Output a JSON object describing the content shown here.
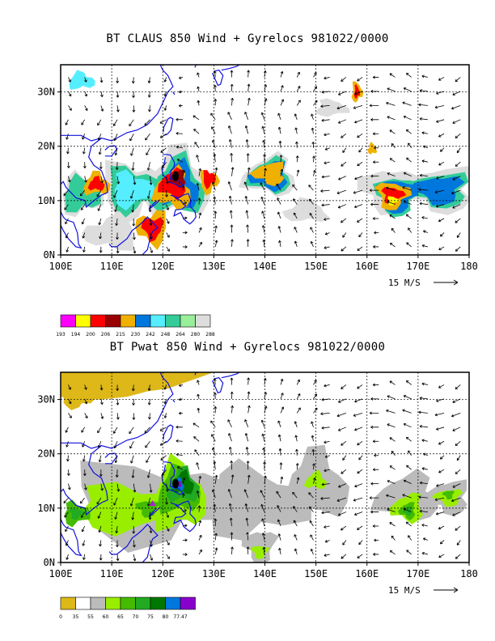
{
  "panels": [
    {
      "title": "BT CLAUS 850 Wind + Gyrelocs 981022/0000",
      "field": "CLAUS brightness temperature",
      "legend": {
        "colors": [
          "#ff00ff",
          "#ffff00",
          "#ff0000",
          "#990000",
          "#f0b000",
          "#0077dd",
          "#55eeff",
          "#33cc99",
          "#99ee99",
          "#dddddd"
        ],
        "labels": [
          "193",
          "194",
          "200",
          "206",
          "215",
          "230",
          "242",
          "248",
          "264",
          "280",
          "288"
        ]
      },
      "vector_scale_label": "15 M/S"
    },
    {
      "title": "BT Pwat 850 Wind + Gyrelocs 981022/0000",
      "field": "Precipitable water",
      "legend": {
        "colors": [
          "#ddb818",
          "#ffffff",
          "#bbbbbb",
          "#99ee00",
          "#44bb00",
          "#22aa22",
          "#007700",
          "#0077dd",
          "#8800cc"
        ],
        "labels": [
          "0",
          "35",
          "55",
          "60",
          "65",
          "70",
          "75",
          "80",
          "77.47"
        ]
      },
      "vector_scale_label": "15 M/S"
    }
  ],
  "axes": {
    "x_ticks": [
      "100E",
      "110E",
      "120E",
      "130E",
      "140E",
      "150E",
      "160E",
      "170E",
      "180"
    ],
    "y_ticks": [
      "0N",
      "10N",
      "20N",
      "30N"
    ],
    "lon_range": [
      100,
      180
    ],
    "lat_range": [
      0,
      35
    ]
  },
  "gyre_center": {
    "lon": 122.5,
    "lat": 14.5
  }
}
